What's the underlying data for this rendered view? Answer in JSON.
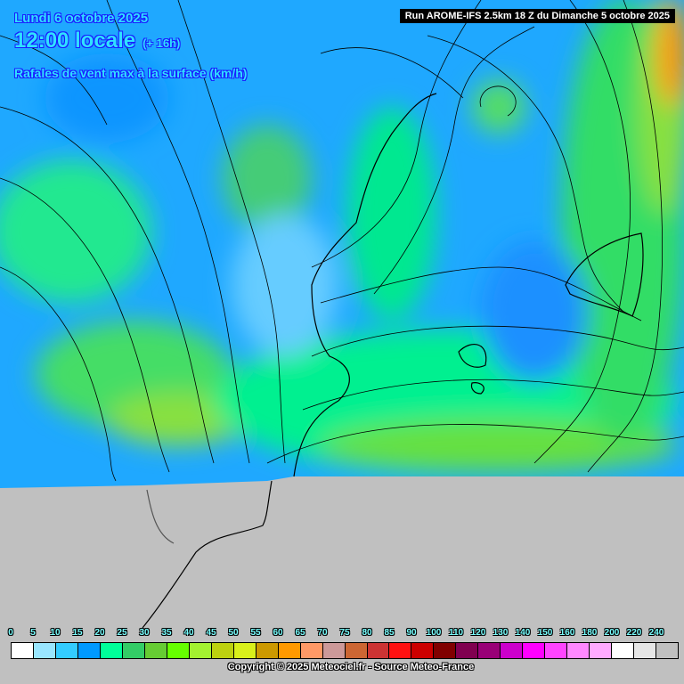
{
  "header": {
    "date": "Lundi 6 octobre 2025",
    "time": "12:00 locale",
    "lead": "(+ 16h)",
    "parameter": "Rafales de vent max à la surface (km/h)",
    "run": "Run AROME-IFS 2.5km 18 Z du Dimanche 5 octobre 2025"
  },
  "legend": {
    "labels": [
      "0",
      "5",
      "10",
      "15",
      "20",
      "25",
      "30",
      "35",
      "40",
      "45",
      "50",
      "55",
      "60",
      "65",
      "70",
      "75",
      "80",
      "85",
      "90",
      "100",
      "110",
      "120",
      "130",
      "140",
      "150",
      "160",
      "180",
      "200",
      "220",
      "240"
    ],
    "colors": [
      "#ffffff",
      "#99e6ff",
      "#33ccff",
      "#0099ff",
      "#00ff99",
      "#33cc66",
      "#66cc33",
      "#66ff00",
      "#a3f230",
      "#bdd10f",
      "#d9f01a",
      "#cc9900",
      "#ff9900",
      "#ff9966",
      "#cc9999",
      "#cc6633",
      "#cc3333",
      "#ff1111",
      "#cc0000",
      "#800000",
      "#800050",
      "#990077",
      "#cc00cc",
      "#ff00ff",
      "#ff44ff",
      "#ff88ff",
      "#ffaaff",
      "#ffffff",
      "#e6e6e6",
      "#c0c0c0"
    ]
  },
  "copyright": "Copyright © 2025 Meteociel.fr - Source Meteo-France",
  "map": {
    "no_data_color": "#c0c0c0"
  }
}
